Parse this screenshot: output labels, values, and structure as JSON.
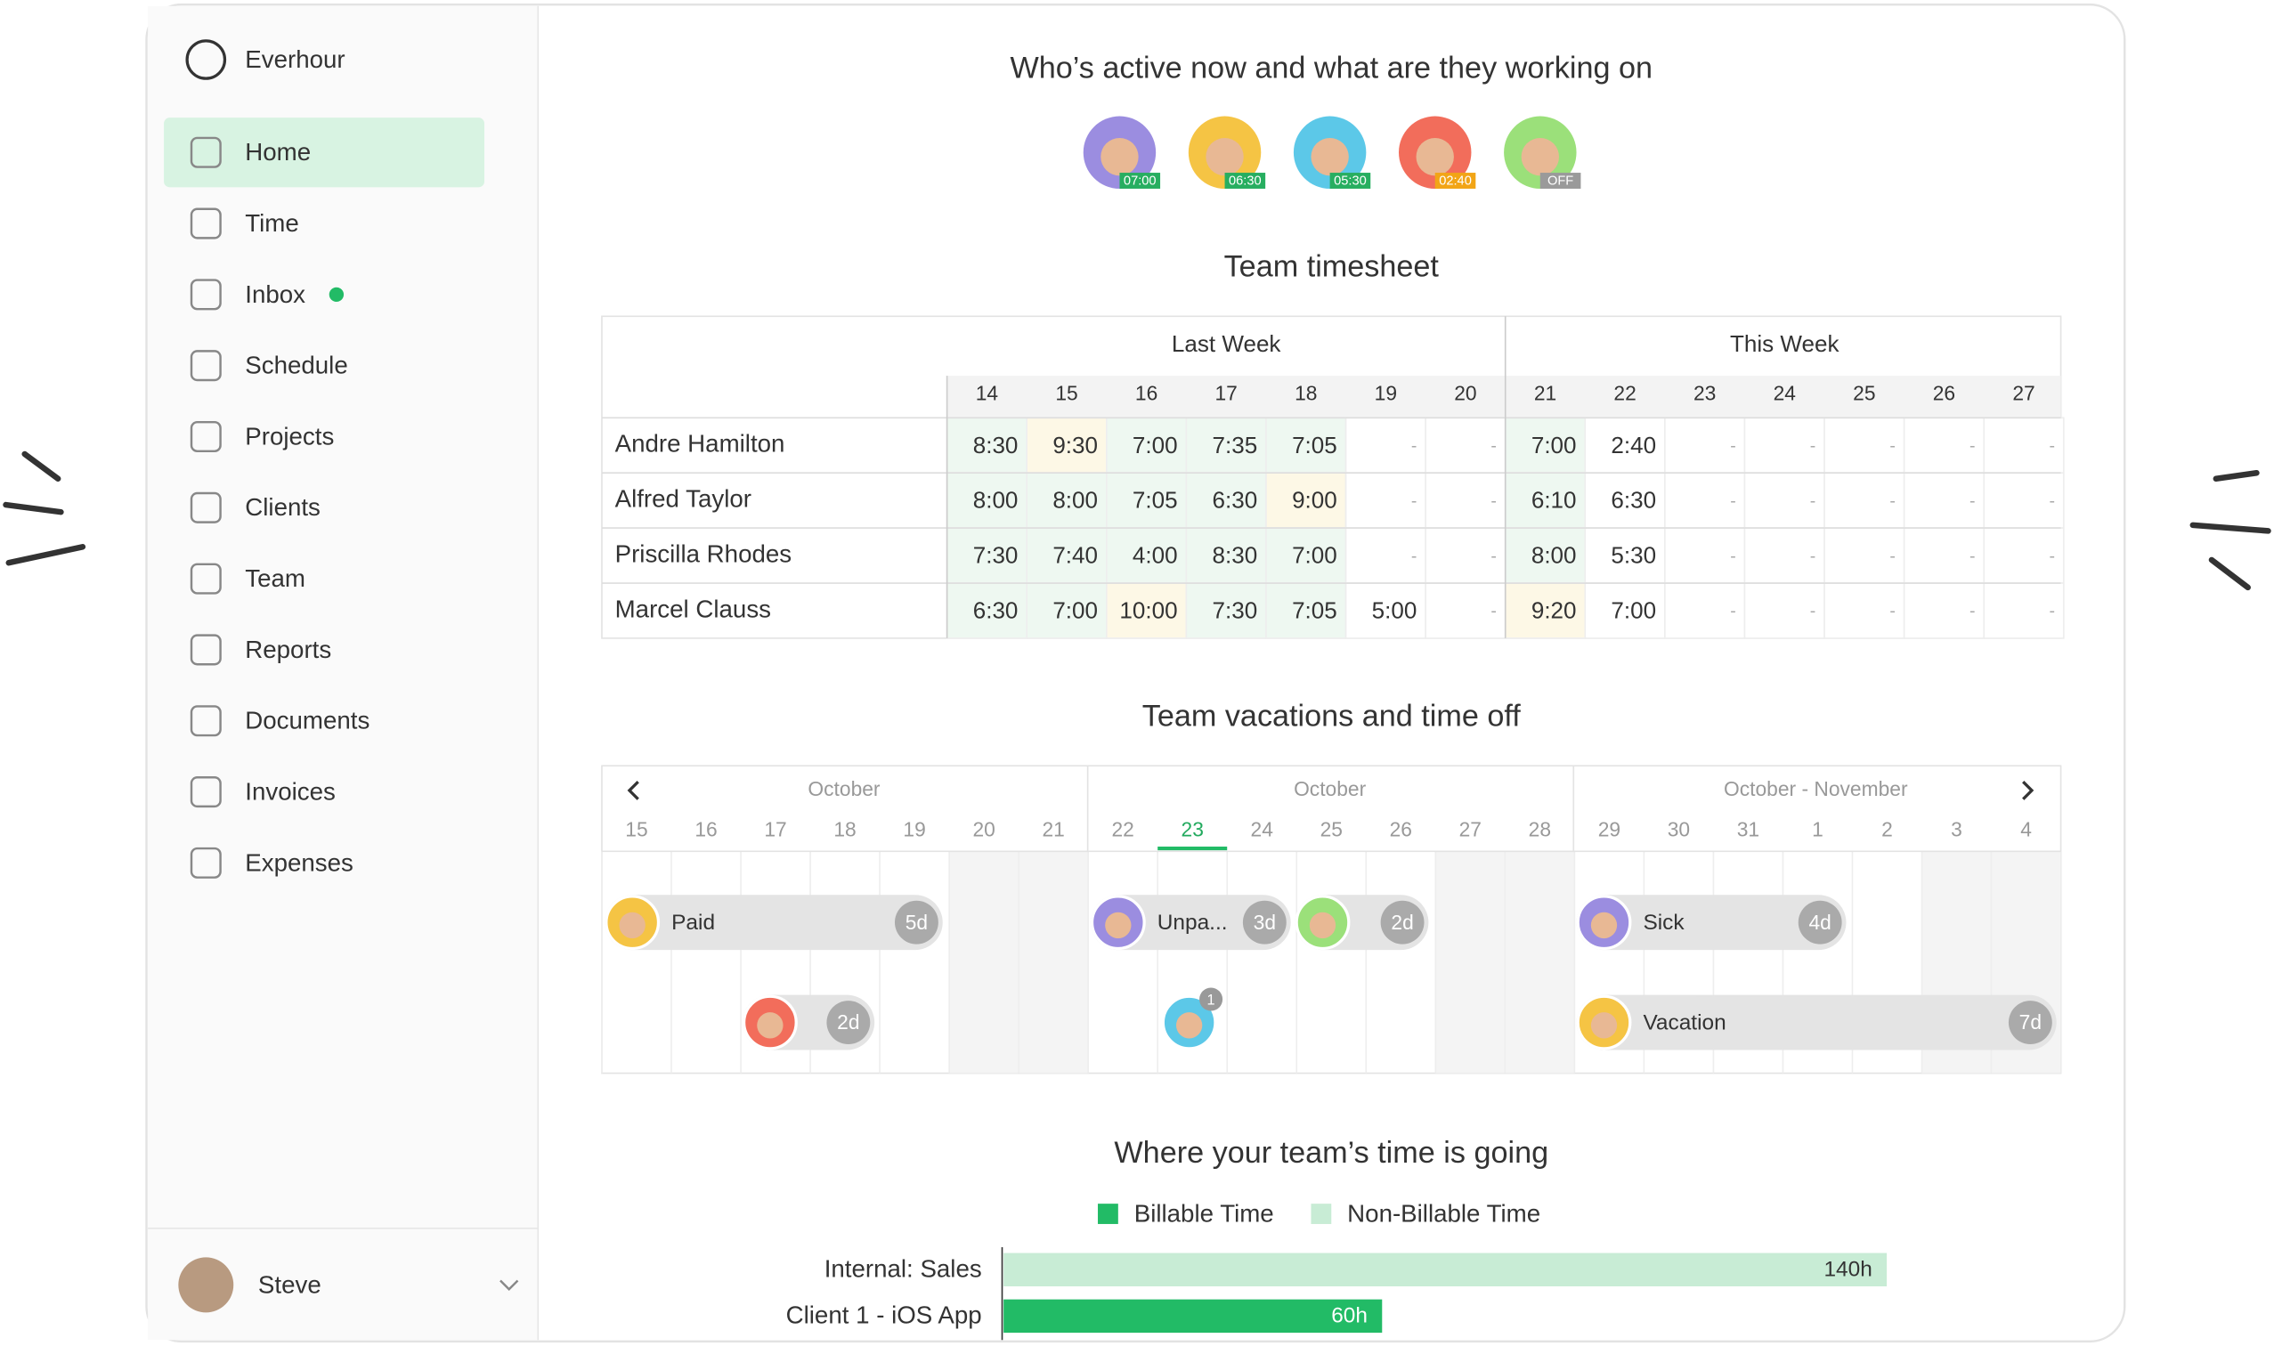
{
  "sidebar": {
    "brand": "Everhour",
    "nav": [
      "Home",
      "Time",
      "Inbox",
      "Schedule",
      "Projects",
      "Clients",
      "Team",
      "Reports",
      "Documents",
      "Invoices",
      "Expenses"
    ],
    "user": "Steve"
  },
  "active_now": {
    "title": "Who’s active now and what are they working on",
    "people": [
      {
        "time": "07:00",
        "color": "#27ae60"
      },
      {
        "time": "06:30",
        "color": "#27ae60"
      },
      {
        "time": "05:30",
        "color": "#27ae60"
      },
      {
        "time": "02:40",
        "color": "#f2a516"
      },
      {
        "time": "OFF",
        "color": "#9a9a9a"
      }
    ]
  },
  "timesheet": {
    "title": "Team timesheet",
    "weeks": [
      "Last Week",
      "This Week"
    ],
    "days": [
      "14",
      "15",
      "16",
      "17",
      "18",
      "19",
      "20",
      "21",
      "22",
      "23",
      "24",
      "25",
      "26",
      "27"
    ],
    "rows": [
      {
        "name": "Andre Hamilton",
        "cells": [
          "8:30",
          "9:30",
          "7:00",
          "7:35",
          "7:05",
          "-",
          "-",
          "7:00",
          "2:40",
          "-",
          "-",
          "-",
          "-",
          "-"
        ]
      },
      {
        "name": "Alfred Taylor",
        "cells": [
          "8:00",
          "8:00",
          "7:05",
          "6:30",
          "9:00",
          "-",
          "-",
          "6:10",
          "6:30",
          "-",
          "-",
          "-",
          "-",
          "-"
        ]
      },
      {
        "name": "Priscilla Rhodes",
        "cells": [
          "7:30",
          "7:40",
          "4:00",
          "8:30",
          "7:00",
          "-",
          "-",
          "8:00",
          "5:30",
          "-",
          "-",
          "-",
          "-",
          "-"
        ]
      },
      {
        "name": "Marcel Clauss",
        "cells": [
          "6:30",
          "7:00",
          "10:00",
          "7:30",
          "7:05",
          "5:00",
          "-",
          "9:20",
          "7:00",
          "-",
          "-",
          "-",
          "-",
          "-"
        ]
      }
    ]
  },
  "vacations": {
    "title": "Team vacations and time off",
    "months": [
      "October",
      "October",
      "October - November"
    ],
    "days": [
      "15",
      "16",
      "17",
      "18",
      "19",
      "20",
      "21",
      "22",
      "23",
      "24",
      "25",
      "26",
      "27",
      "28",
      "29",
      "30",
      "31",
      "1",
      "2",
      "3",
      "4"
    ],
    "entries": [
      {
        "label": "Paid",
        "badge": "5d"
      },
      {
        "label": "Unpa...",
        "badge": "3d"
      },
      {
        "badge": "2d"
      },
      {
        "label": "Sick",
        "badge": "4d"
      },
      {
        "badge": "2d"
      },
      {
        "badge": "1"
      },
      {
        "label": "Vacation",
        "badge": "7d"
      }
    ]
  },
  "time_chart": {
    "title": "Where your team’s time is going",
    "categories": [
      "Internal: Sales",
      "Client 1 - iOS App"
    ],
    "series": [
      {
        "name": "Billable Time",
        "color": "#22bb66",
        "values": [
          null,
          60
        ],
        "value_labels": [
          null,
          "60h"
        ]
      },
      {
        "name": "Non-Billable Time",
        "color": "#c8ecd5",
        "values": [
          140,
          null
        ],
        "value_labels": [
          "140h",
          null
        ]
      }
    ]
  }
}
